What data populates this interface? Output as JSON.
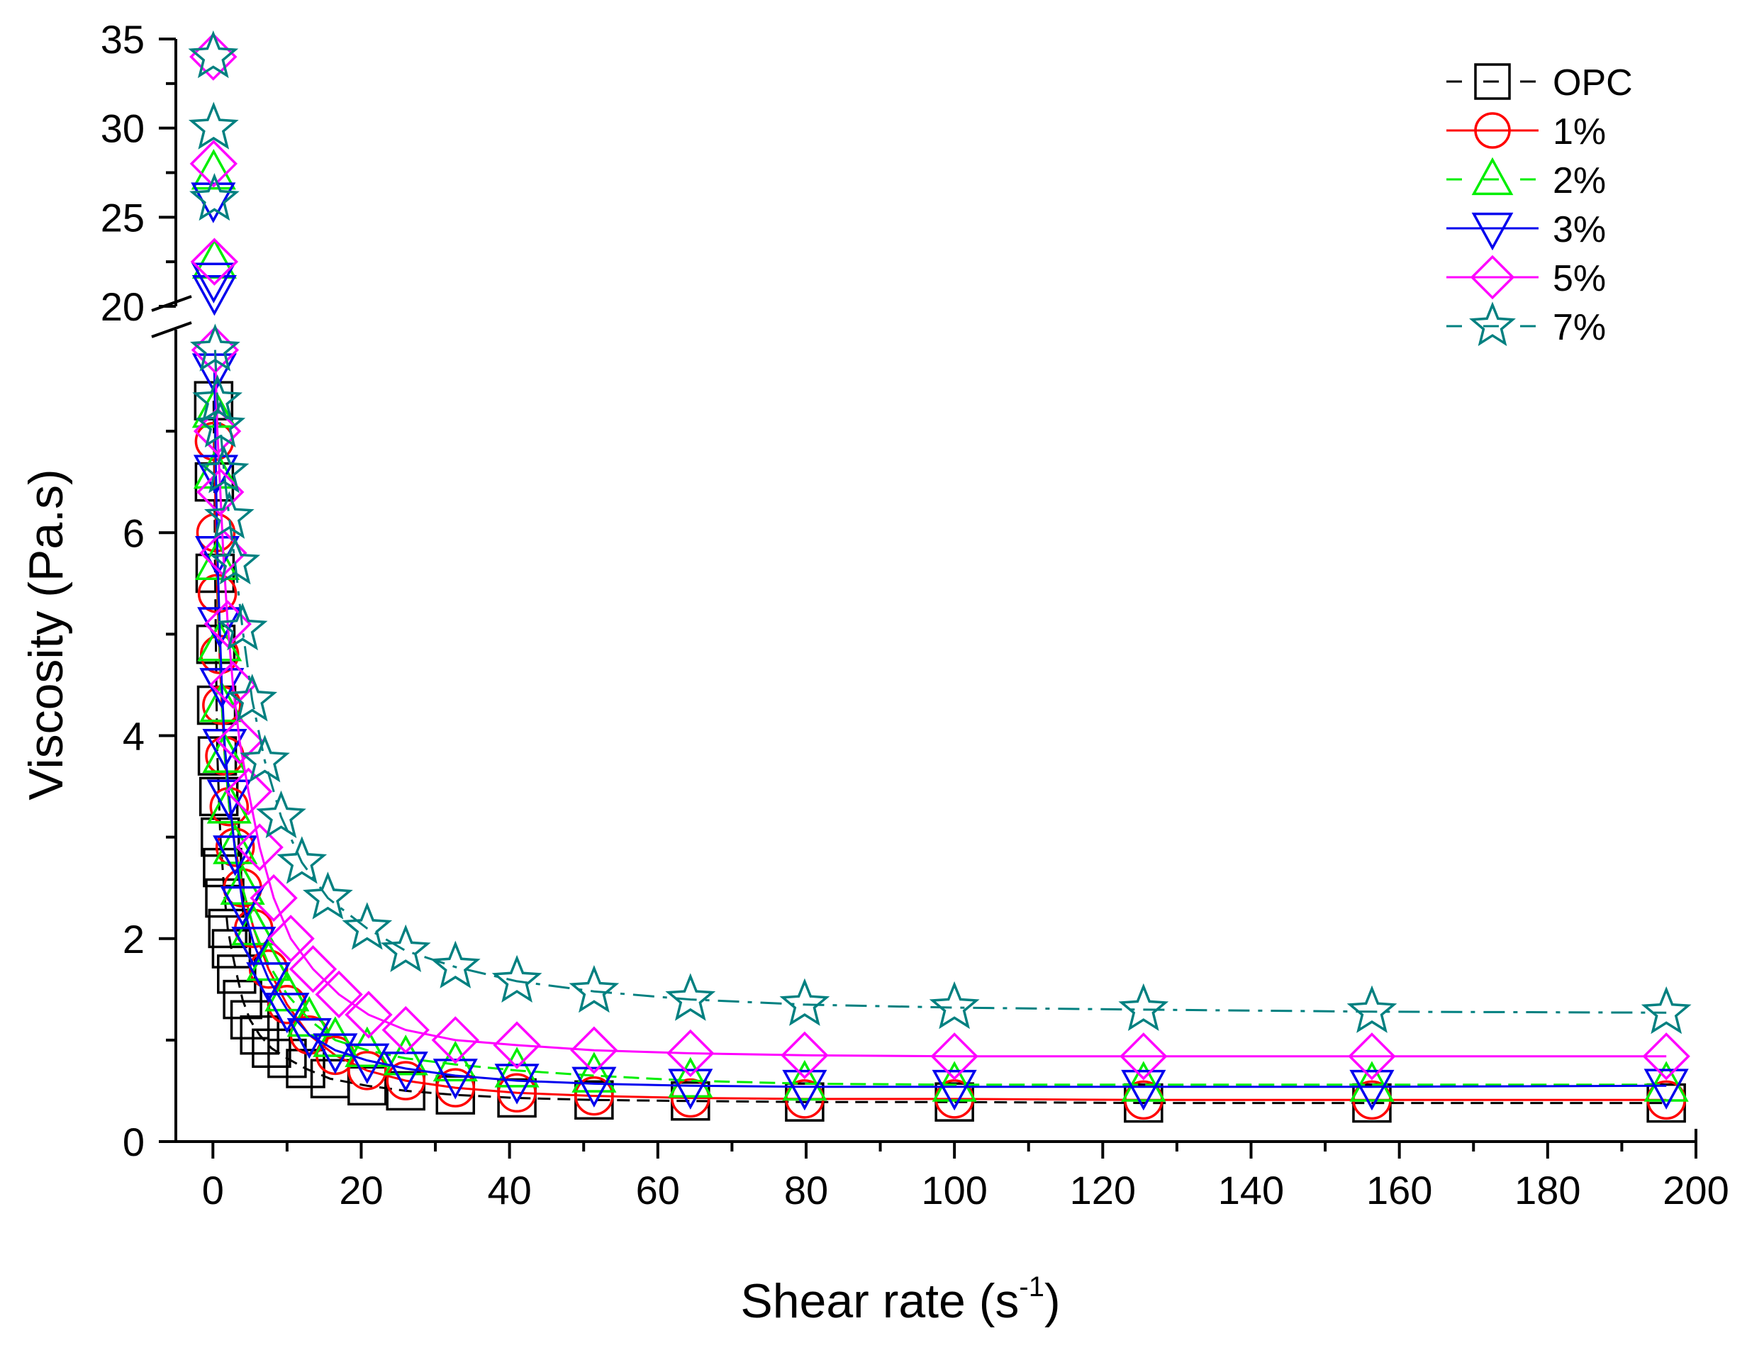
{
  "chart_data": {
    "type": "line",
    "title": "",
    "xlabel": "Shear rate (s",
    "xlabel_sup": "-1",
    "xlabel_close": ")",
    "ylabel": "Viscosity (Pa.s)",
    "xlim": [
      -5,
      200
    ],
    "ylim_lower": [
      0,
      8
    ],
    "ylim_upper": [
      20,
      35
    ],
    "x_ticks": [
      0,
      20,
      40,
      60,
      80,
      100,
      120,
      140,
      160,
      180,
      200
    ],
    "y_ticks_lower": [
      0,
      2,
      4,
      6
    ],
    "y_ticks_upper": [
      20,
      25,
      30,
      35
    ],
    "legend_position": "top-right",
    "series": [
      {
        "name": "OPC",
        "color": "#000000",
        "marker": "square",
        "dash": "",
        "x": [
          0.1,
          0.2,
          0.3,
          0.4,
          0.5,
          0.6,
          0.8,
          1.0,
          1.3,
          1.6,
          2.0,
          2.5,
          3.2,
          4.0,
          5.0,
          6.3,
          7.9,
          10,
          12.5,
          15.8,
          20.8,
          26,
          32.7,
          41,
          51.4,
          64.4,
          79.8,
          100,
          125.5,
          156.3,
          196
        ],
        "y": [
          7.3,
          6.5,
          5.6,
          4.9,
          4.3,
          3.8,
          3.4,
          3.0,
          2.7,
          2.4,
          2.1,
          1.9,
          1.65,
          1.4,
          1.2,
          1.05,
          0.92,
          0.82,
          0.72,
          0.62,
          0.55,
          0.5,
          0.46,
          0.43,
          0.41,
          0.4,
          0.39,
          0.39,
          0.38,
          0.38,
          0.38
        ]
      },
      {
        "name": "1%",
        "color": "#ff0000",
        "marker": "circle",
        "dash": "",
        "x": [
          0.2,
          0.4,
          0.6,
          0.9,
          1.2,
          1.6,
          2.2,
          3.0,
          4.0,
          5.5,
          7.5,
          10,
          13,
          16.5,
          20.8,
          26,
          32.7,
          41,
          51.4,
          64.4,
          79.8,
          100,
          125.5,
          156.3,
          196
        ],
        "y": [
          6.9,
          6.0,
          5.4,
          4.8,
          4.3,
          3.8,
          3.3,
          2.9,
          2.5,
          2.1,
          1.7,
          1.35,
          1.05,
          0.85,
          0.7,
          0.6,
          0.53,
          0.48,
          0.45,
          0.43,
          0.42,
          0.42,
          0.41,
          0.41,
          0.41
        ]
      },
      {
        "name": "2%",
        "color": "#00ee00",
        "marker": "triangle-up",
        "dash": "",
        "series_upper": true,
        "x": [
          0.2,
          0.4,
          0.6,
          0.9,
          1.2,
          1.6,
          2.2,
          3.0,
          4.0,
          5.5,
          7.5,
          10,
          13,
          16.5,
          20.8,
          26,
          32.7,
          41,
          51.4,
          64.4,
          79.8,
          100,
          125.5,
          156.3,
          196
        ],
        "y": [
          7.2,
          6.6,
          5.7,
          4.9,
          4.3,
          3.8,
          3.3,
          2.9,
          2.5,
          2.1,
          1.75,
          1.45,
          1.2,
          1.0,
          0.9,
          0.82,
          0.76,
          0.7,
          0.65,
          0.6,
          0.57,
          0.56,
          0.56,
          0.56,
          0.56
        ],
        "upper_x": [
          0.1,
          0.2
        ],
        "upper_y": [
          27.5,
          22.5
        ]
      },
      {
        "name": "3%",
        "color": "#0000ee",
        "marker": "triangle-down",
        "dash": "",
        "x": [
          0.2,
          0.4,
          0.6,
          0.9,
          1.2,
          1.6,
          2.2,
          3.0,
          4.0,
          5.5,
          7.5,
          10,
          13,
          16.5,
          20.8,
          26,
          32.7,
          41,
          51.4,
          64.4,
          79.8,
          100,
          125.5,
          156.3,
          196
        ],
        "y": [
          7.6,
          6.6,
          5.8,
          5.1,
          4.5,
          3.9,
          3.4,
          2.85,
          2.35,
          1.95,
          1.6,
          1.3,
          1.05,
          0.9,
          0.8,
          0.72,
          0.65,
          0.6,
          0.57,
          0.55,
          0.54,
          0.54,
          0.54,
          0.54,
          0.55
        ],
        "upper_x": [
          0.05,
          0.1,
          0.2
        ],
        "upper_y": [
          26,
          21.5,
          20.8
        ]
      },
      {
        "name": "5%",
        "color": "#ff00ff",
        "marker": "diamond",
        "dash": "",
        "x": [
          0.3,
          0.6,
          1.0,
          1.4,
          2.0,
          2.7,
          3.6,
          4.8,
          6.3,
          8.2,
          10.5,
          13.5,
          17,
          21,
          26,
          32.7,
          41,
          51.4,
          64.4,
          79.8,
          100,
          125.5,
          156.3,
          196
        ],
        "y": [
          7.8,
          7.0,
          6.4,
          5.8,
          5.1,
          4.5,
          3.95,
          3.45,
          2.9,
          2.4,
          2.0,
          1.7,
          1.45,
          1.25,
          1.1,
          1.0,
          0.95,
          0.9,
          0.87,
          0.85,
          0.84,
          0.84,
          0.84,
          0.84
        ],
        "upper_x": [
          0.05,
          0.1,
          0.2
        ],
        "upper_y": [
          34,
          28,
          22.5
        ]
      },
      {
        "name": "7%",
        "color": "#008080",
        "marker": "star",
        "dash": "",
        "x": [
          0.3,
          0.6,
          1.0,
          1.5,
          2.2,
          3.0,
          4.0,
          5.3,
          7.0,
          9.2,
          12,
          15.5,
          20.8,
          26,
          32.7,
          41,
          51.4,
          64.4,
          79.8,
          100,
          125.5,
          156.3,
          196
        ],
        "y": [
          7.8,
          7.3,
          7.05,
          6.6,
          6.15,
          5.7,
          5.05,
          4.35,
          3.75,
          3.2,
          2.75,
          2.4,
          2.1,
          1.88,
          1.72,
          1.58,
          1.48,
          1.4,
          1.35,
          1.32,
          1.3,
          1.28,
          1.27
        ],
        "upper_x": [
          0.05,
          0.1,
          0.2
        ],
        "upper_y": [
          34,
          30,
          26
        ]
      }
    ]
  }
}
